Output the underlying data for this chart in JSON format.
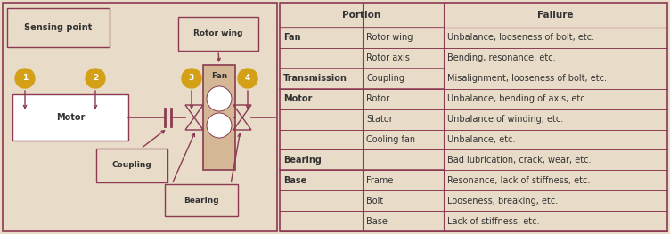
{
  "bg_color": "#e8dbc8",
  "border_color": "#8B3A52",
  "text_color": "#333333",
  "dark_red": "#8B3A52",
  "gold_circle": "#D4A017",
  "fan_fill": "#D4B896",
  "motor_fill": "#FFFFFF",
  "table_rows": [
    {
      "col1": "Fan",
      "col2": "Rotor wing",
      "col3": "Unbalance, looseness of bolt, etc."
    },
    {
      "col1": "",
      "col2": "Rotor axis",
      "col3": "Bending, resonance, etc."
    },
    {
      "col1": "Transmission",
      "col2": "Coupling",
      "col3": "Misalignment, looseness of bolt, etc."
    },
    {
      "col1": "Motor",
      "col2": "Rotor",
      "col3": "Unbalance, bending of axis, etc."
    },
    {
      "col1": "",
      "col2": "Stator",
      "col3": "Unbalance of winding, etc."
    },
    {
      "col1": "",
      "col2": "Cooling fan",
      "col3": "Unbalance, etc."
    },
    {
      "col1": "Bearing",
      "col2": "",
      "col3": "Bad lubrication, crack, wear, etc."
    },
    {
      "col1": "Base",
      "col2": "Frame",
      "col3": "Resonance, lack of stiffness, etc."
    },
    {
      "col1": "",
      "col2": "Bolt",
      "col3": "Looseness, breaking, etc."
    },
    {
      "col1": "",
      "col2": "Base",
      "col3": "Lack of stiffness, etc."
    }
  ],
  "diagram_labels": {
    "sensing_point": "Sensing point",
    "motor": "Motor",
    "coupling": "Coupling",
    "bearing": "Bearing",
    "rotor_wing": "Rotor wing",
    "fan": "Fan"
  },
  "sensing_numbers": [
    "1",
    "2",
    "3",
    "4"
  ]
}
